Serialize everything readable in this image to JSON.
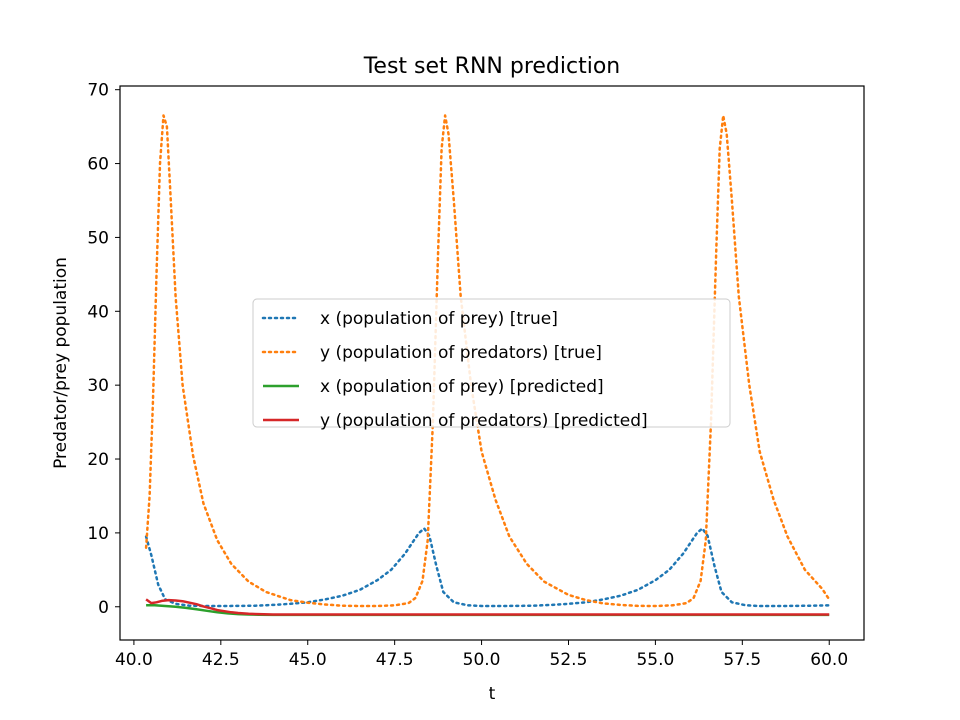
{
  "chart_data": {
    "type": "line",
    "title": "Test set RNN prediction",
    "xlabel": "t",
    "ylabel": "Predator/prey population",
    "xlim": [
      39.6,
      61.0
    ],
    "ylim": [
      -4.5,
      70.5
    ],
    "xticks": [
      40.0,
      42.5,
      45.0,
      47.5,
      50.0,
      52.5,
      55.0,
      57.5,
      60.0
    ],
    "xtick_labels": [
      "40.0",
      "42.5",
      "45.0",
      "47.5",
      "50.0",
      "52.5",
      "55.0",
      "57.5",
      "60.0"
    ],
    "yticks": [
      0,
      10,
      20,
      30,
      40,
      50,
      60,
      70
    ],
    "ytick_labels": [
      "0",
      "10",
      "20",
      "30",
      "40",
      "50",
      "60",
      "70"
    ],
    "grid": false,
    "legend_position": "center-right",
    "series": [
      {
        "name": "x (population of prey) [true]",
        "color": "#1f77b4",
        "style": "dotted",
        "x": [
          40.35,
          40.5,
          40.7,
          40.9,
          41.2,
          41.6,
          42.0,
          42.5,
          43.0,
          43.5,
          44.0,
          44.5,
          45.0,
          45.5,
          46.0,
          46.5,
          47.0,
          47.4,
          47.8,
          48.0,
          48.2,
          48.35,
          48.5,
          48.7,
          48.9,
          49.2,
          49.6,
          50.0,
          50.5,
          51.0,
          51.5,
          52.0,
          52.5,
          53.0,
          53.5,
          54.0,
          54.5,
          55.0,
          55.4,
          55.8,
          56.0,
          56.2,
          56.35,
          56.5,
          56.7,
          56.9,
          57.2,
          57.6,
          58.0,
          58.5,
          59.0,
          59.5,
          60.0
        ],
        "y": [
          9.5,
          7.0,
          3.0,
          1.0,
          0.4,
          0.15,
          0.1,
          0.1,
          0.12,
          0.15,
          0.25,
          0.4,
          0.6,
          1.0,
          1.5,
          2.3,
          3.6,
          5.0,
          7.2,
          8.6,
          10.0,
          10.6,
          9.6,
          5.5,
          2.0,
          0.6,
          0.2,
          0.1,
          0.1,
          0.12,
          0.15,
          0.25,
          0.4,
          0.6,
          1.0,
          1.5,
          2.3,
          3.6,
          5.0,
          7.2,
          8.6,
          10.0,
          10.6,
          9.6,
          5.5,
          2.0,
          0.6,
          0.2,
          0.1,
          0.1,
          0.12,
          0.15,
          0.2
        ]
      },
      {
        "name": "y (population of predators) [true]",
        "color": "#ff7f0e",
        "style": "dotted",
        "x": [
          40.35,
          40.45,
          40.55,
          40.65,
          40.75,
          40.85,
          40.95,
          41.05,
          41.2,
          41.4,
          41.7,
          42.0,
          42.4,
          42.8,
          43.3,
          43.8,
          44.5,
          45.0,
          45.5,
          46.0,
          46.5,
          47.0,
          47.5,
          47.9,
          48.1,
          48.3,
          48.45,
          48.6,
          48.75,
          48.85,
          48.95,
          49.05,
          49.2,
          49.4,
          49.7,
          50.0,
          50.4,
          50.8,
          51.3,
          51.8,
          52.5,
          53.0,
          53.5,
          54.0,
          54.5,
          55.0,
          55.5,
          55.9,
          56.1,
          56.3,
          56.45,
          56.6,
          56.75,
          56.85,
          56.95,
          57.05,
          57.2,
          57.4,
          57.7,
          58.0,
          58.4,
          58.8,
          59.3,
          59.8,
          60.0
        ],
        "y": [
          8.0,
          15.0,
          28.0,
          45.0,
          60.0,
          66.5,
          65.0,
          56.0,
          42.0,
          30.0,
          20.5,
          14.0,
          9.0,
          5.8,
          3.4,
          2.0,
          0.9,
          0.55,
          0.3,
          0.15,
          0.1,
          0.1,
          0.2,
          0.5,
          1.2,
          3.5,
          9.0,
          25.0,
          48.0,
          62.0,
          66.5,
          64.0,
          55.0,
          42.0,
          30.0,
          21.0,
          14.5,
          9.5,
          5.8,
          3.4,
          1.6,
          0.9,
          0.45,
          0.25,
          0.12,
          0.1,
          0.2,
          0.5,
          1.2,
          3.5,
          9.0,
          25.0,
          48.0,
          62.0,
          66.5,
          64.0,
          55.0,
          42.0,
          30.0,
          21.0,
          14.5,
          9.5,
          5.0,
          2.4,
          1.0
        ]
      },
      {
        "name": "x (population of prey) [predicted]",
        "color": "#2ca02c",
        "style": "solid",
        "x": [
          40.35,
          40.6,
          40.9,
          41.2,
          41.5,
          41.8,
          42.1,
          42.4,
          42.7,
          43.0,
          43.3,
          43.6,
          44.0,
          44.5,
          45.0,
          46.0,
          48.0,
          50.0,
          52.0,
          54.0,
          56.0,
          58.0,
          60.0
        ],
        "y": [
          0.2,
          0.2,
          0.1,
          0.0,
          -0.15,
          -0.35,
          -0.55,
          -0.75,
          -0.9,
          -1.0,
          -1.05,
          -1.08,
          -1.1,
          -1.1,
          -1.1,
          -1.1,
          -1.1,
          -1.1,
          -1.1,
          -1.1,
          -1.1,
          -1.1,
          -1.1
        ]
      },
      {
        "name": "y (population of predators) [predicted]",
        "color": "#d62728",
        "style": "solid",
        "x": [
          40.35,
          40.5,
          40.65,
          40.8,
          41.0,
          41.2,
          41.4,
          41.6,
          41.8,
          42.0,
          42.2,
          42.4,
          42.6,
          42.8,
          43.0,
          43.3,
          43.6,
          44.0,
          44.5,
          45.0,
          46.0,
          48.0,
          50.0,
          52.0,
          54.0,
          56.0,
          58.0,
          60.0
        ],
        "y": [
          1.0,
          0.5,
          0.6,
          0.8,
          0.9,
          0.85,
          0.75,
          0.55,
          0.35,
          0.05,
          -0.2,
          -0.45,
          -0.6,
          -0.75,
          -0.85,
          -0.95,
          -1.0,
          -1.05,
          -1.05,
          -1.05,
          -1.05,
          -1.05,
          -1.05,
          -1.05,
          -1.05,
          -1.05,
          -1.05,
          -1.05
        ]
      }
    ]
  }
}
